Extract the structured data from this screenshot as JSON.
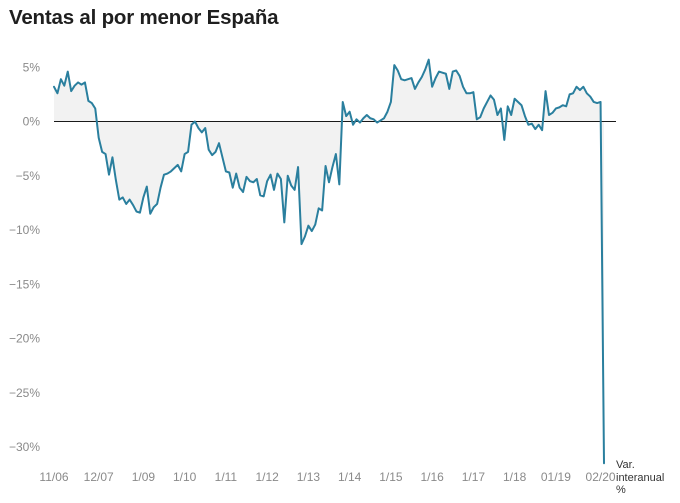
{
  "title": "Ventas al por menor España",
  "chart_data": {
    "type": "area",
    "title": "Ventas al por menor España",
    "ylabel_lines": [
      "Var.",
      "interanual",
      "%"
    ],
    "xlabel": "",
    "ylim": [
      -31.5,
      5.8
    ],
    "y_ticks": [
      {
        "value": 5,
        "label": "5%"
      },
      {
        "value": 0,
        "label": "0%"
      },
      {
        "value": -5,
        "label": "−5%"
      },
      {
        "value": -10,
        "label": "−10%"
      },
      {
        "value": -15,
        "label": "−15%"
      },
      {
        "value": -20,
        "label": "−20%"
      },
      {
        "value": -25,
        "label": "−25%"
      },
      {
        "value": -30,
        "label": "−30%"
      }
    ],
    "x_ticks": [
      {
        "t": 0,
        "label": "11/06"
      },
      {
        "t": 13,
        "label": "12/07"
      },
      {
        "t": 26,
        "label": "1/09"
      },
      {
        "t": 38,
        "label": "1/10"
      },
      {
        "t": 50,
        "label": "1/11"
      },
      {
        "t": 62,
        "label": "1/12"
      },
      {
        "t": 74,
        "label": "1/13"
      },
      {
        "t": 86,
        "label": "1/14"
      },
      {
        "t": 98,
        "label": "1/15"
      },
      {
        "t": 110,
        "label": "1/16"
      },
      {
        "t": 122,
        "label": "1/17"
      },
      {
        "t": 134,
        "label": "1/18"
      },
      {
        "t": 146,
        "label": "01/19"
      },
      {
        "t": 159,
        "label": "02/20"
      }
    ],
    "series": [
      {
        "name": "Var. interanual ventas al por menor",
        "color": "#2a7f9e",
        "fill": "#f2f2f2",
        "values": [
          3.2,
          2.6,
          3.9,
          3.3,
          4.6,
          2.8,
          3.3,
          3.6,
          3.4,
          3.6,
          1.9,
          1.7,
          1.2,
          -1.5,
          -2.8,
          -3.0,
          -4.9,
          -3.3,
          -5.4,
          -7.2,
          -7.0,
          -7.6,
          -7.2,
          -7.7,
          -8.3,
          -8.4,
          -7.0,
          -6.0,
          -8.5,
          -7.9,
          -7.6,
          -6.1,
          -4.9,
          -4.8,
          -4.6,
          -4.3,
          -4.0,
          -4.6,
          -3.0,
          -2.8,
          -0.3,
          0.0,
          -0.6,
          -1.0,
          -0.6,
          -2.6,
          -3.1,
          -2.8,
          -2.0,
          -3.3,
          -4.6,
          -4.7,
          -6.1,
          -4.8,
          -6.1,
          -6.5,
          -5.1,
          -5.5,
          -5.6,
          -5.3,
          -6.8,
          -6.9,
          -5.5,
          -4.9,
          -6.3,
          -4.8,
          -5.3,
          -9.3,
          -5.0,
          -5.9,
          -6.3,
          -4.2,
          -11.3,
          -10.6,
          -9.6,
          -10.1,
          -9.5,
          -8.0,
          -8.2,
          -4.1,
          -5.6,
          -4.2,
          -3.0,
          -5.8,
          1.8,
          0.5,
          0.9,
          -0.3,
          0.2,
          -0.1,
          0.3,
          0.6,
          0.3,
          0.2,
          -0.1,
          0.1,
          0.3,
          0.9,
          1.8,
          5.2,
          4.7,
          3.9,
          3.8,
          3.9,
          4.0,
          3.0,
          3.6,
          4.1,
          4.8,
          5.7,
          3.2,
          4.0,
          4.6,
          4.5,
          4.4,
          3.0,
          4.6,
          4.7,
          4.2,
          3.2,
          2.6,
          2.6,
          2.7,
          0.2,
          0.4,
          1.2,
          1.8,
          2.4,
          2.0,
          0.6,
          1.2,
          -1.7,
          1.4,
          0.6,
          2.1,
          1.8,
          1.5,
          0.5,
          -0.3,
          -0.2,
          -0.7,
          -0.3,
          -0.8,
          2.8,
          0.6,
          0.8,
          1.2,
          1.3,
          1.5,
          1.4,
          2.5,
          2.6,
          3.2,
          2.9,
          3.2,
          2.6,
          2.3,
          1.8,
          1.7,
          1.8,
          -31.5
        ]
      }
    ],
    "zero_line": true,
    "grid": false,
    "legend": "none"
  }
}
